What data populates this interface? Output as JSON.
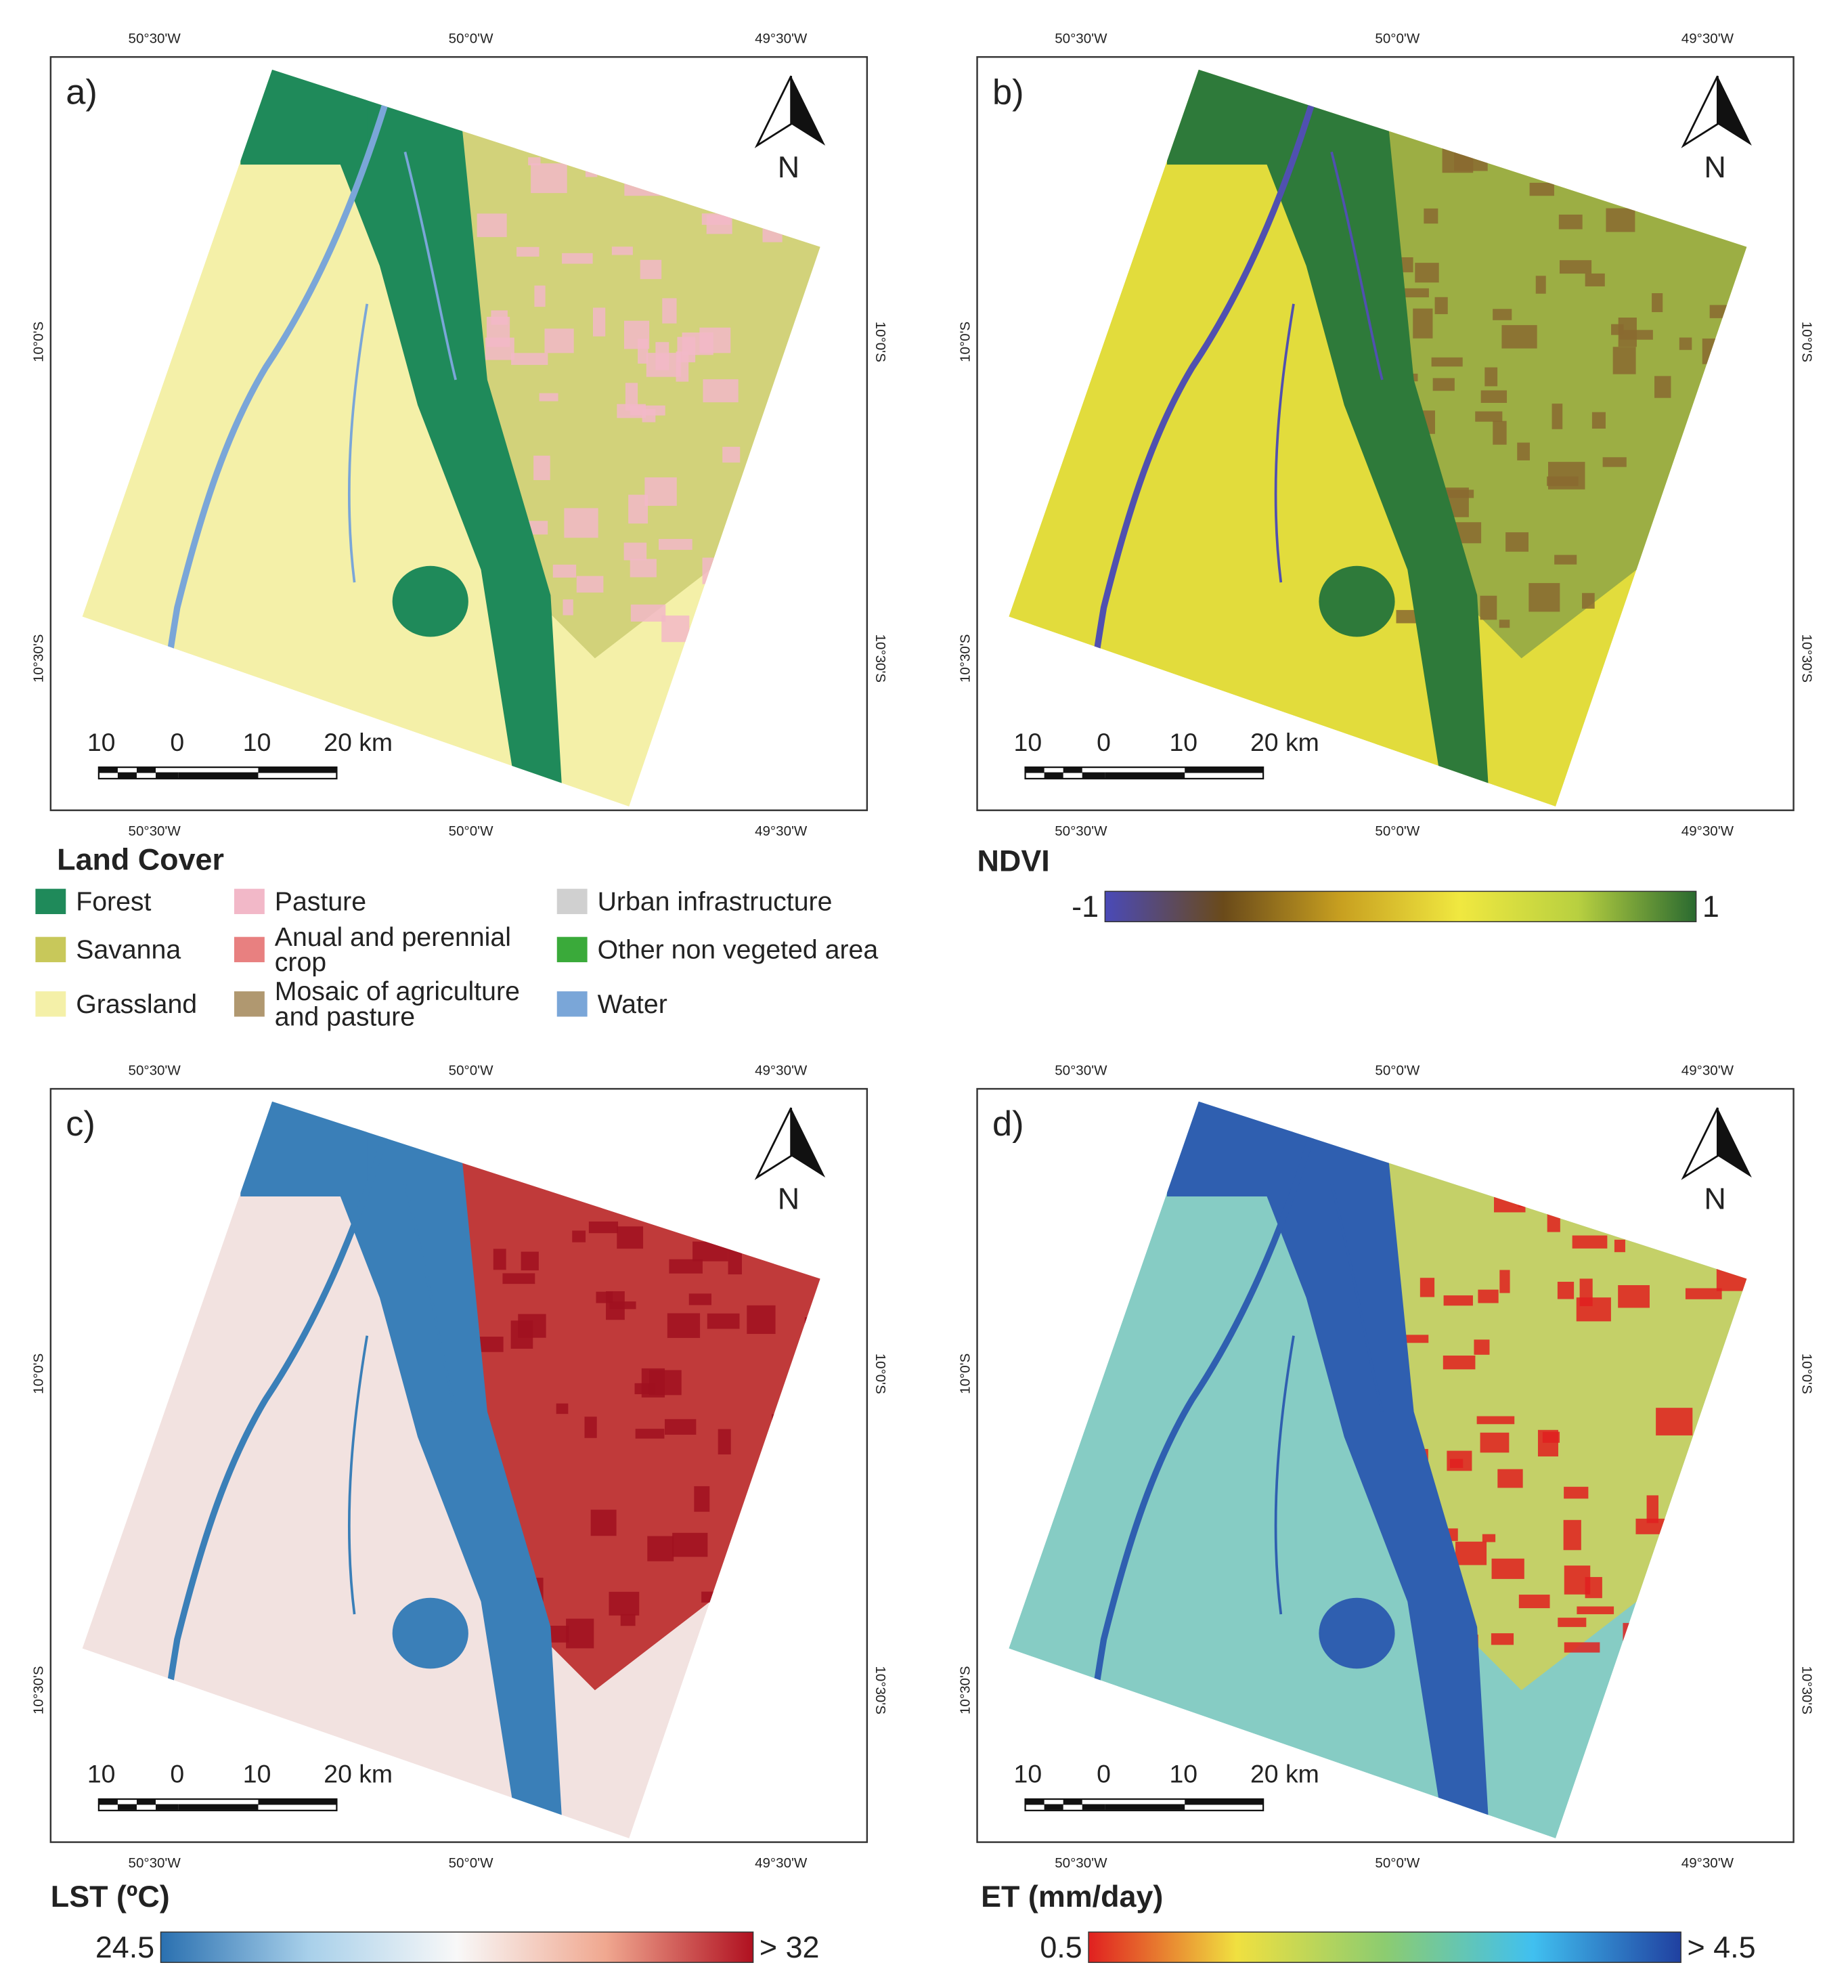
{
  "panels": [
    {
      "label": "a)",
      "north": "N",
      "top_ticks": [
        "50°30'W",
        "50°0'W",
        "49°30'W"
      ],
      "bottom_ticks": [
        "50°30'W",
        "50°0'W",
        "49°30'W"
      ],
      "left_ticks": [
        "10°0'S",
        "10°30'S"
      ],
      "right_ticks": [
        "10°0'S",
        "10°30'S"
      ],
      "scale_labels": [
        "10",
        "0",
        "10",
        "20 km"
      ]
    },
    {
      "label": "b)",
      "north": "N",
      "top_ticks": [
        "50°30'W",
        "50°0'W",
        "49°30'W"
      ],
      "bottom_ticks": [
        "50°30'W",
        "50°0'W",
        "49°30'W"
      ],
      "left_ticks": [
        "10°0'S",
        "10°30'S"
      ],
      "right_ticks": [
        "10°0'S",
        "10°30'S"
      ],
      "scale_labels": [
        "10",
        "0",
        "10",
        "20 km"
      ]
    },
    {
      "label": "c)",
      "north": "N",
      "top_ticks": [
        "50°30'W",
        "50°0'W",
        "49°30'W"
      ],
      "bottom_ticks": [
        "50°30'W",
        "50°0'W",
        "49°30'W"
      ],
      "left_ticks": [
        "10°0'S",
        "10°30'S"
      ],
      "right_ticks": [
        "10°0'S",
        "10°30'S"
      ],
      "scale_labels": [
        "10",
        "0",
        "10",
        "20 km"
      ]
    },
    {
      "label": "d)",
      "north": "N",
      "top_ticks": [
        "50°30'W",
        "50°0'W",
        "49°30'W"
      ],
      "bottom_ticks": [
        "50°30'W",
        "50°0'W",
        "49°30'W"
      ],
      "left_ticks": [
        "10°0'S",
        "10°30'S"
      ],
      "right_ticks": [
        "10°0'S",
        "10°30'S"
      ],
      "scale_labels": [
        "10",
        "0",
        "10",
        "20 km"
      ]
    }
  ],
  "land_cover": {
    "title": "Land Cover",
    "items": [
      {
        "lines": [
          "Forest"
        ],
        "color": "#1f8a5a"
      },
      {
        "lines": [
          "Savanna"
        ],
        "color": "#c8c85a"
      },
      {
        "lines": [
          "Grassland"
        ],
        "color": "#f4f0a8"
      },
      {
        "lines": [
          "Pasture"
        ],
        "color": "#f2b8c8"
      },
      {
        "lines": [
          "Anual and perennial",
          "crop"
        ],
        "color": "#e88080"
      },
      {
        "lines": [
          "Mosaic of agriculture",
          "and pasture"
        ],
        "color": "#b09870"
      },
      {
        "lines": [
          "Urban infrastructure"
        ],
        "color": "#d0d0d0"
      },
      {
        "lines": [
          "Other non vegeted area"
        ],
        "color": "#3aaa3a"
      },
      {
        "lines": [
          "Water"
        ],
        "color": "#7aa6d8"
      }
    ]
  },
  "ndvi": {
    "title": "NDVI",
    "min": "-1",
    "max": "1",
    "colors": [
      "#4a4ab8",
      "#6a4a1a",
      "#c8a020",
      "#f0e840",
      "#b8d040",
      "#2a6a30"
    ]
  },
  "lst": {
    "title": "LST (ºC)",
    "min": "24.5",
    "max": "> 32",
    "colors": [
      "#2a70b0",
      "#a8d0ea",
      "#f8f8f8",
      "#f0a890",
      "#b01020"
    ]
  },
  "et": {
    "title": "ET (mm/day)",
    "min": "0.5",
    "max": "> 4.5",
    "colors": [
      "#e02020",
      "#f0e040",
      "#8ccc70",
      "#40c0f0",
      "#2040a0"
    ]
  }
}
